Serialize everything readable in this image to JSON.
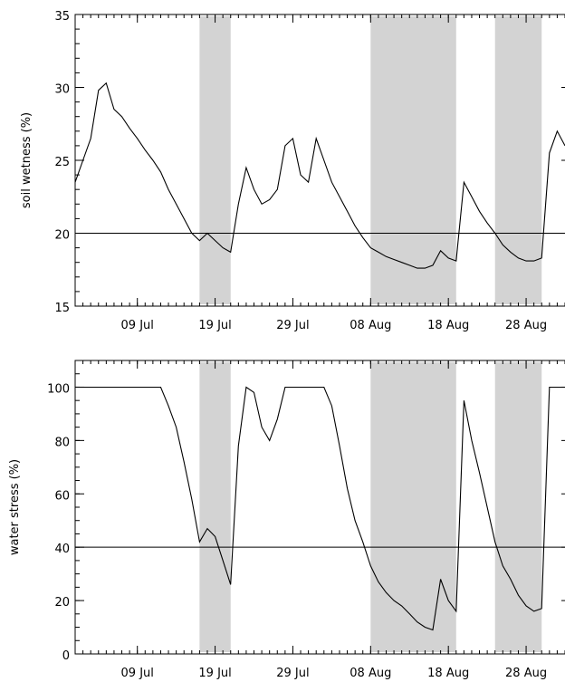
{
  "chart_data": [
    {
      "type": "line",
      "y_label": "soil wetness (%)",
      "color": "#000000",
      "x": [
        "01 Jul",
        "02 Jul",
        "03 Jul",
        "04 Jul",
        "05 Jul",
        "06 Jul",
        "07 Jul",
        "08 Jul",
        "09 Jul",
        "10 Jul",
        "11 Jul",
        "12 Jul",
        "13 Jul",
        "14 Jul",
        "15 Jul",
        "16 Jul",
        "17 Jul",
        "18 Jul",
        "19 Jul",
        "20 Jul",
        "21 Jul",
        "22 Jul",
        "23 Jul",
        "24 Jul",
        "25 Jul",
        "26 Jul",
        "27 Jul",
        "28 Jul",
        "29 Jul",
        "30 Jul",
        "31 Jul",
        "01 Aug",
        "02 Aug",
        "03 Aug",
        "04 Aug",
        "05 Aug",
        "06 Aug",
        "07 Aug",
        "08 Aug",
        "09 Aug",
        "10 Aug",
        "11 Aug",
        "12 Aug",
        "13 Aug",
        "14 Aug",
        "15 Aug",
        "16 Aug",
        "17 Aug",
        "18 Aug",
        "19 Aug",
        "20 Aug",
        "21 Aug",
        "22 Aug",
        "23 Aug",
        "24 Aug",
        "25 Aug",
        "26 Aug",
        "27 Aug",
        "28 Aug",
        "29 Aug",
        "30 Aug",
        "31 Aug",
        "01 Sep",
        "02 Sep"
      ],
      "values": [
        23.5,
        25,
        26.5,
        29.8,
        30.3,
        28.5,
        28,
        27.2,
        26.5,
        25.7,
        25,
        24.2,
        23,
        22,
        21,
        20,
        19.5,
        20,
        19.5,
        19,
        18.7,
        22,
        24.5,
        23,
        22,
        22.3,
        23,
        26,
        26.5,
        24,
        23.5,
        26.5,
        25,
        23.5,
        22.5,
        21.5,
        20.5,
        19.7,
        19,
        18.7,
        18.4,
        18.2,
        18,
        17.8,
        17.6,
        17.6,
        17.8,
        18.8,
        18.3,
        18.1,
        23.5,
        22.5,
        21.5,
        20.7,
        20,
        19.2,
        18.7,
        18.3,
        18.1,
        18.1,
        18.3,
        25.5,
        27,
        26
      ],
      "xlim": [
        "01 Jul",
        "02 Sep"
      ],
      "xticks": [
        "09 Jul",
        "19 Jul",
        "29 Jul",
        "08 Aug",
        "18 Aug",
        "28 Aug"
      ],
      "ylim": [
        15,
        35
      ],
      "yticks": [
        15,
        20,
        25,
        30,
        35
      ],
      "reference_line": 20,
      "shaded_ranges": [
        [
          "17 Jul",
          "21 Jul"
        ],
        [
          "08 Aug",
          "19 Aug"
        ],
        [
          "24 Aug",
          "30 Aug"
        ]
      ]
    },
    {
      "type": "line",
      "y_label": "water stress (%)",
      "color": "#000000",
      "x": [
        "01 Jul",
        "02 Jul",
        "03 Jul",
        "04 Jul",
        "05 Jul",
        "06 Jul",
        "07 Jul",
        "08 Jul",
        "09 Jul",
        "10 Jul",
        "11 Jul",
        "12 Jul",
        "13 Jul",
        "14 Jul",
        "15 Jul",
        "16 Jul",
        "17 Jul",
        "18 Jul",
        "19 Jul",
        "20 Jul",
        "21 Jul",
        "22 Jul",
        "23 Jul",
        "24 Jul",
        "25 Jul",
        "26 Jul",
        "27 Jul",
        "28 Jul",
        "29 Jul",
        "30 Jul",
        "31 Jul",
        "01 Aug",
        "02 Aug",
        "03 Aug",
        "04 Aug",
        "05 Aug",
        "06 Aug",
        "07 Aug",
        "08 Aug",
        "09 Aug",
        "10 Aug",
        "11 Aug",
        "12 Aug",
        "13 Aug",
        "14 Aug",
        "15 Aug",
        "16 Aug",
        "17 Aug",
        "18 Aug",
        "19 Aug",
        "20 Aug",
        "21 Aug",
        "22 Aug",
        "23 Aug",
        "24 Aug",
        "25 Aug",
        "26 Aug",
        "27 Aug",
        "28 Aug",
        "29 Aug",
        "30 Aug",
        "31 Aug",
        "01 Sep",
        "02 Sep"
      ],
      "values": [
        100,
        100,
        100,
        100,
        100,
        100,
        100,
        100,
        100,
        100,
        100,
        100,
        93,
        85,
        72,
        58,
        42,
        47,
        44,
        35,
        26,
        78,
        100,
        98,
        85,
        80,
        88,
        100,
        100,
        100,
        100,
        100,
        100,
        93,
        78,
        62,
        50,
        42,
        33,
        27,
        23,
        20,
        18,
        15,
        12,
        10,
        9,
        28,
        20,
        16,
        95,
        80,
        68,
        55,
        42,
        33,
        28,
        22,
        18,
        16,
        17,
        100,
        100,
        100
      ],
      "xlim": [
        "01 Jul",
        "02 Sep"
      ],
      "xticks": [
        "09 Jul",
        "19 Jul",
        "29 Jul",
        "08 Aug",
        "18 Aug",
        "28 Aug"
      ],
      "ylim": [
        0,
        110
      ],
      "yticks": [
        0,
        20,
        40,
        60,
        80,
        100
      ],
      "reference_line": 40,
      "shaded_ranges": [
        [
          "17 Jul",
          "21 Jul"
        ],
        [
          "08 Aug",
          "19 Aug"
        ],
        [
          "24 Aug",
          "30 Aug"
        ]
      ]
    }
  ]
}
